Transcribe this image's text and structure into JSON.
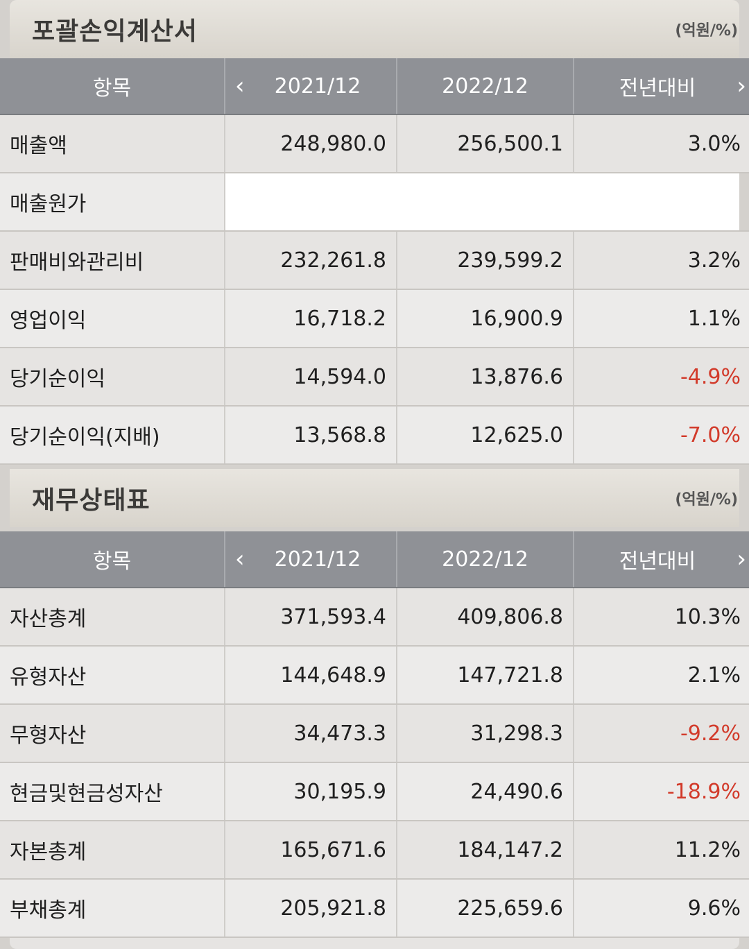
{
  "income_statement": {
    "title": "포괄손익계산서",
    "unit": "(억원/%)",
    "header": {
      "item": "항목",
      "col1": "2021/12",
      "col2": "2022/12",
      "col3": "전년대비",
      "prev": "‹",
      "next": "›"
    },
    "rows": [
      {
        "name": "매출액",
        "v1": "248,980.0",
        "v2": "256,500.1",
        "yoy": "3.0%",
        "neg": false
      },
      {
        "name": "매출원가",
        "v1": "",
        "v2": "",
        "yoy": "",
        "neg": false,
        "blank": true
      },
      {
        "name": "판매비와관리비",
        "v1": "232,261.8",
        "v2": "239,599.2",
        "yoy": "3.2%",
        "neg": false
      },
      {
        "name": "영업이익",
        "v1": "16,718.2",
        "v2": "16,900.9",
        "yoy": "1.1%",
        "neg": false
      },
      {
        "name": "당기순이익",
        "v1": "14,594.0",
        "v2": "13,876.6",
        "yoy": "-4.9%",
        "neg": true
      },
      {
        "name": "당기순이익(지배)",
        "v1": "13,568.8",
        "v2": "12,625.0",
        "yoy": "-7.0%",
        "neg": true
      }
    ]
  },
  "balance_sheet": {
    "title": "재무상태표",
    "unit": "(억원/%)",
    "header": {
      "item": "항목",
      "col1": "2021/12",
      "col2": "2022/12",
      "col3": "전년대비",
      "prev": "‹",
      "next": "›"
    },
    "rows": [
      {
        "name": "자산총계",
        "v1": "371,593.4",
        "v2": "409,806.8",
        "yoy": "10.3%",
        "neg": false
      },
      {
        "name": "유형자산",
        "v1": "144,648.9",
        "v2": "147,721.8",
        "yoy": "2.1%",
        "neg": false
      },
      {
        "name": "무형자산",
        "v1": "34,473.3",
        "v2": "31,298.3",
        "yoy": "-9.2%",
        "neg": true
      },
      {
        "name": "현금및현금성자산",
        "v1": "30,195.9",
        "v2": "24,490.6",
        "yoy": "-18.9%",
        "neg": true
      },
      {
        "name": "자본총계",
        "v1": "165,671.6",
        "v2": "184,147.2",
        "yoy": "11.2%",
        "neg": false
      },
      {
        "name": "부채총계",
        "v1": "205,921.8",
        "v2": "225,659.6",
        "yoy": "9.6%",
        "neg": false
      }
    ]
  },
  "colors": {
    "negative": "#d23a2a",
    "header_bg": "#8f9196",
    "cell_bg": "#ecebea"
  }
}
